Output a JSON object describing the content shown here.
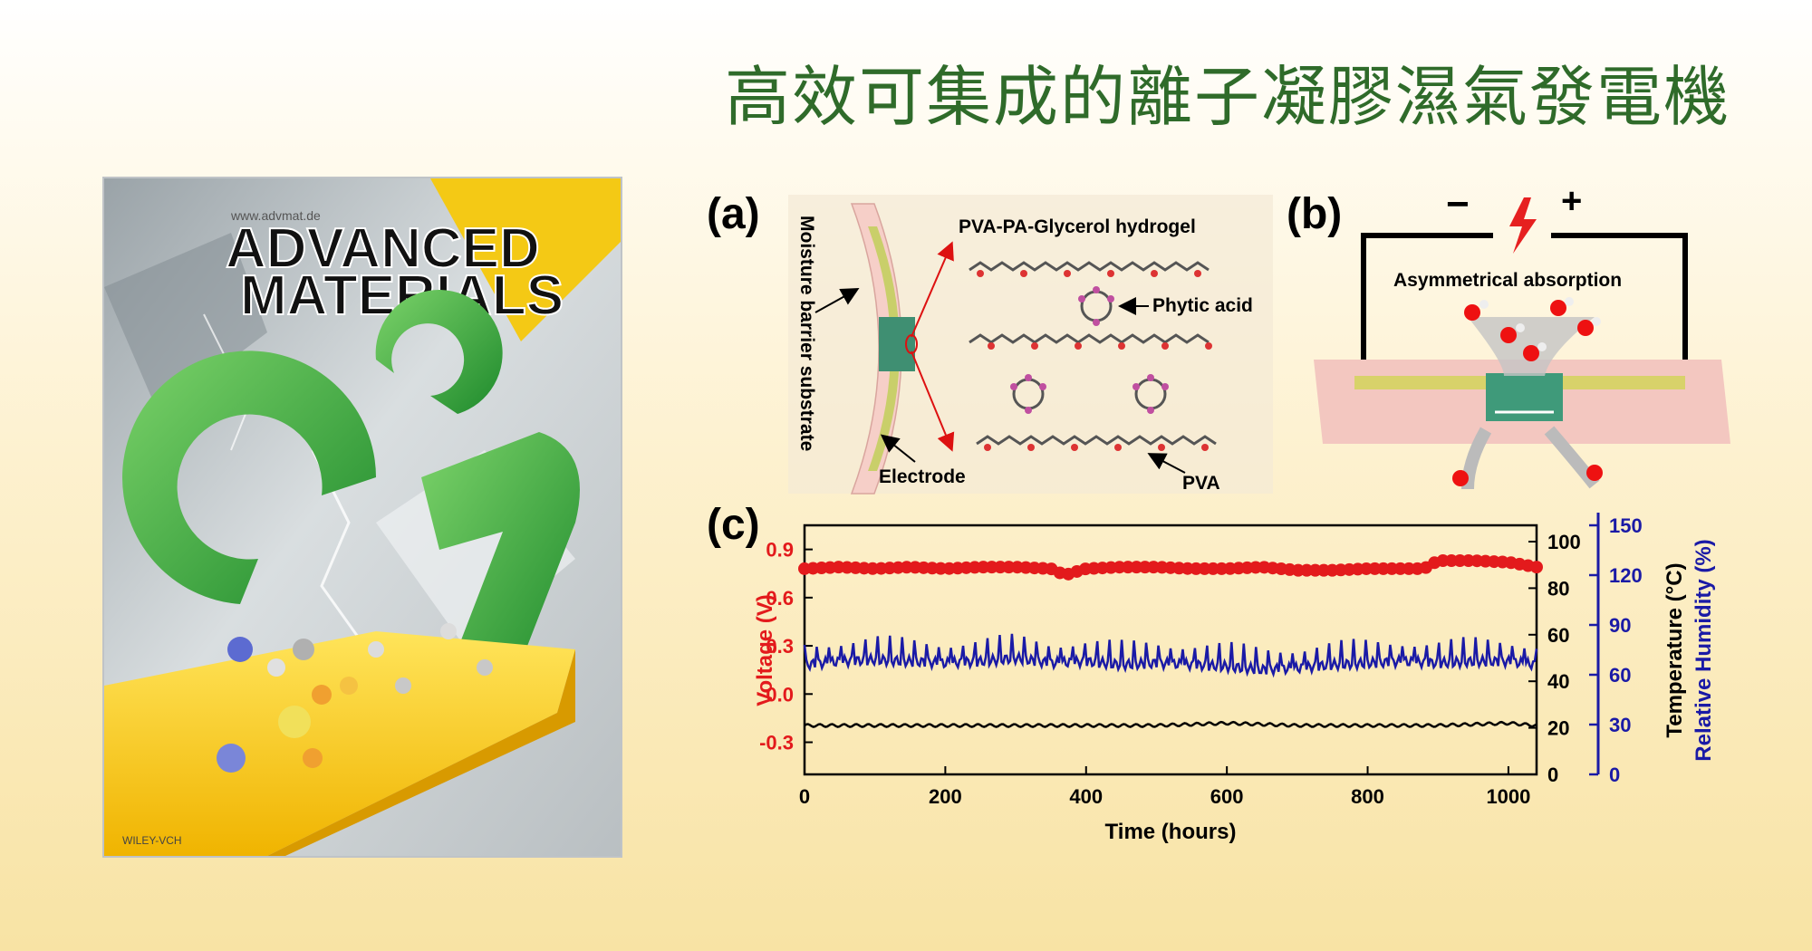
{
  "slide": {
    "title": "高效可集成的離子凝膠濕氣發電機",
    "title_color": "#2f6b2a"
  },
  "cover": {
    "journal_line1": "ADVANCED",
    "journal_line2": "MATERIALS",
    "website": "www.advmat.de",
    "publisher": "WILEY-VCH"
  },
  "panel_a": {
    "label": "(a)",
    "substrate": "Moisture barrier substrate",
    "hydrogel": "PVA-PA-Glycerol hydrogel",
    "phytic_acid": "Phytic acid",
    "electrode": "Electrode",
    "pva": "PVA"
  },
  "panel_b": {
    "label": "(b)",
    "minus": "−",
    "plus": "+",
    "absorption": "Asymmetrical absorption"
  },
  "panel_c": {
    "label": "(c)"
  },
  "chart_data": {
    "type": "line",
    "x": {
      "label": "Time (hours)",
      "range": [
        0,
        1040
      ],
      "ticks": [
        0,
        200,
        400,
        600,
        800,
        1000
      ]
    },
    "axes": {
      "voltage": {
        "label": "Voltage (V)",
        "range": [
          -0.5,
          1.05
        ],
        "ticks": [
          "0.9",
          "0.6",
          "0.3",
          "0.0",
          "-0.3"
        ],
        "tick_values": [
          0.9,
          0.6,
          0.3,
          0.0,
          -0.3
        ],
        "color": "#e31a1c"
      },
      "temperature": {
        "label": "Temperature (°C)",
        "range": [
          0,
          107
        ],
        "ticks": [
          "100",
          "80",
          "60",
          "40",
          "20",
          "0"
        ],
        "tick_values": [
          100,
          80,
          60,
          40,
          20,
          0
        ],
        "color": "#000000"
      },
      "humidity": {
        "label": "Relative Humidity (%)",
        "range": [
          0,
          150
        ],
        "ticks": [
          "150",
          "120",
          "90",
          "60",
          "30",
          "0"
        ],
        "tick_values": [
          150,
          120,
          90,
          60,
          30,
          0
        ],
        "color": "#1a1aa6"
      }
    },
    "series": [
      {
        "name": "Voltage",
        "axis": "voltage",
        "color": "#e31a1c",
        "marker": "circle",
        "x": [
          0,
          50,
          100,
          150,
          200,
          250,
          300,
          350,
          370,
          400,
          450,
          500,
          550,
          600,
          650,
          700,
          750,
          800,
          850,
          880,
          900,
          950,
          1000,
          1040
        ],
        "values": [
          0.78,
          0.79,
          0.78,
          0.79,
          0.78,
          0.79,
          0.79,
          0.78,
          0.74,
          0.78,
          0.79,
          0.79,
          0.78,
          0.78,
          0.79,
          0.77,
          0.77,
          0.78,
          0.78,
          0.78,
          0.83,
          0.83,
          0.82,
          0.79
        ]
      },
      {
        "name": "Relative Humidity",
        "axis": "humidity",
        "color": "#1a1aa6",
        "x": [
          0,
          50,
          100,
          150,
          200,
          250,
          300,
          350,
          400,
          450,
          500,
          550,
          600,
          650,
          700,
          750,
          800,
          850,
          900,
          950,
          1000,
          1040
        ],
        "values": [
          66,
          68,
          69,
          68,
          67,
          68,
          70,
          67,
          68,
          66,
          67,
          66,
          65,
          63,
          64,
          66,
          67,
          68,
          67,
          68,
          68,
          66
        ]
      },
      {
        "name": "Temperature",
        "axis": "temperature",
        "color": "#000000",
        "x": [
          0,
          100,
          200,
          300,
          400,
          500,
          600,
          700,
          800,
          900,
          1000,
          1040
        ],
        "values": [
          21,
          21,
          21,
          21,
          21,
          21,
          22,
          21,
          21,
          21,
          22,
          21
        ]
      }
    ]
  }
}
